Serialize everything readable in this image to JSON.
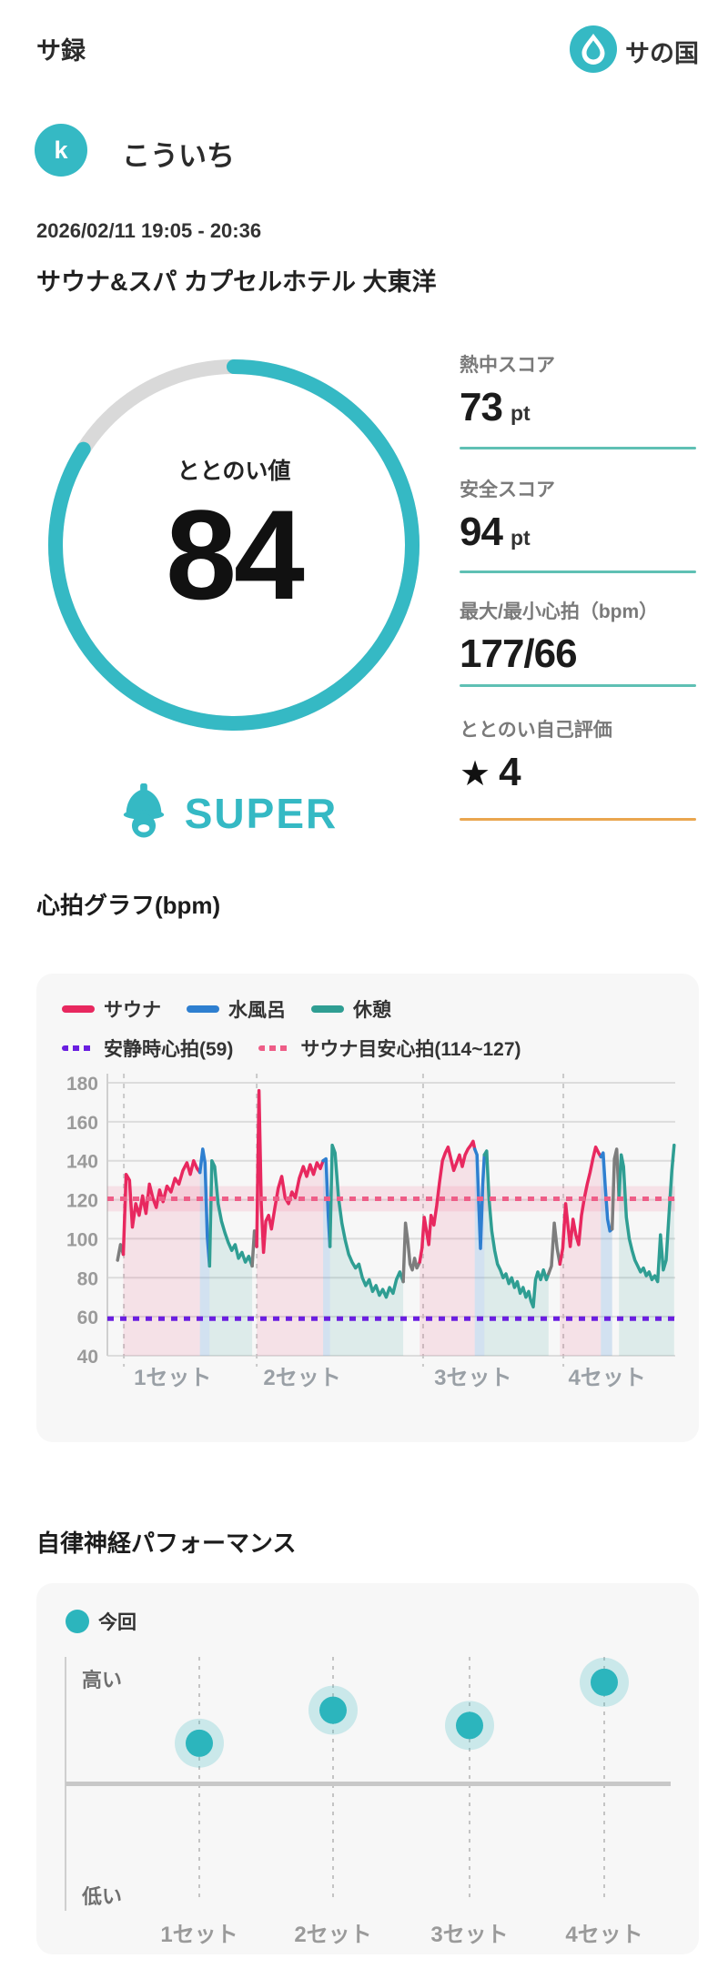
{
  "header": {
    "app_title": "サ録",
    "logo_text": "サの国"
  },
  "profile": {
    "avatar_initial": "k",
    "name": "こういち"
  },
  "session": {
    "datetime": "2026/02/11 19:05 - 20:36",
    "venue": "サウナ&スパ カプセルホテル 大東洋"
  },
  "gauge": {
    "label": "ととのい値",
    "value": "84",
    "percent": 84,
    "rating": "SUPER"
  },
  "stats": [
    {
      "label": "熱中スコア",
      "value": "73",
      "unit": "pt",
      "star": "",
      "underline": "#5fc0b4"
    },
    {
      "label": "安全スコア",
      "value": "94",
      "unit": "pt",
      "star": "",
      "underline": "#5fc0b4"
    },
    {
      "label": "最大/最小心拍（bpm）",
      "value": "177/66",
      "unit": "",
      "star": "",
      "underline": "#5fc0b4"
    },
    {
      "label": "ととのい自己評価",
      "value": "4",
      "unit": "",
      "star": "★",
      "underline": "#eaa64f"
    }
  ],
  "colors": {
    "accent_teal": "#35b9c4",
    "sauna_pink": "#e8285f",
    "water_blue": "#2e7fd0",
    "rest_teal": "#2f9e93",
    "transition_gray": "#7d7d7d",
    "resting_purple": "#6a1ee0",
    "guide_pink": "#ee5d87",
    "card_bg": "#f7f7f7",
    "grid_gray": "#dcdcdc",
    "rating_orange": "#eaa64f"
  },
  "chart_data": [
    {
      "type": "line",
      "title": "心拍グラフ(bpm)",
      "ylim": [
        40,
        180
      ],
      "yticks": [
        180,
        160,
        140,
        120,
        100,
        80,
        60,
        40
      ],
      "grid": true,
      "x_categories": [
        "1セット",
        "2セット",
        "3セット",
        "4セット"
      ],
      "set_marker_x": [
        2.9,
        26.3,
        55.6,
        80.3
      ],
      "set_label_x": [
        11.5,
        34.3,
        64.4,
        88.0
      ],
      "legend": [
        {
          "label": "サウナ",
          "color": "#e8285f"
        },
        {
          "label": "水風呂",
          "color": "#2e7fd0"
        },
        {
          "label": "休憩",
          "color": "#2f9e93"
        }
      ],
      "guides": [
        {
          "label": "安静時心拍(59)",
          "value": 59,
          "color": "#6a1ee0"
        },
        {
          "label": "サウナ目安心拍(114~127)",
          "value": 120.5,
          "band": [
            114,
            127
          ],
          "color": "#ee5d87"
        }
      ],
      "palette": {
        "sauna": "#e8285f",
        "water": "#2e7fd0",
        "rest": "#2f9e93",
        "transition": "#7d7d7d"
      },
      "fill_opacity": {
        "sauna": 0.1,
        "water": 0.18,
        "rest": 0.13,
        "transition": 0
      },
      "series_segments": [
        {
          "type": "transition",
          "points": [
            [
              1.8,
              89
            ],
            [
              2.3,
              97
            ],
            [
              2.8,
              92
            ]
          ]
        },
        {
          "type": "sauna",
          "points": [
            [
              2.8,
              92
            ],
            [
              3.3,
              133
            ],
            [
              3.9,
              130
            ],
            [
              4.4,
              106
            ],
            [
              5.0,
              118
            ],
            [
              5.6,
              112
            ],
            [
              6.2,
              122
            ],
            [
              6.8,
              113
            ],
            [
              7.4,
              128
            ],
            [
              8.0,
              121
            ],
            [
              8.6,
              116
            ],
            [
              9.2,
              125
            ],
            [
              9.8,
              119
            ],
            [
              10.5,
              127
            ],
            [
              11.2,
              124
            ],
            [
              11.9,
              131
            ],
            [
              12.6,
              128
            ],
            [
              13.3,
              135
            ],
            [
              14.0,
              139
            ],
            [
              14.6,
              133
            ],
            [
              15.2,
              140
            ],
            [
              15.8,
              136
            ],
            [
              16.3,
              134
            ]
          ]
        },
        {
          "type": "water",
          "points": [
            [
              16.3,
              134
            ],
            [
              16.8,
              146
            ],
            [
              17.2,
              139
            ],
            [
              17.6,
              101
            ],
            [
              18.0,
              86
            ]
          ]
        },
        {
          "type": "rest",
          "points": [
            [
              18.0,
              86
            ],
            [
              18.4,
              140
            ],
            [
              18.9,
              137
            ],
            [
              19.5,
              118
            ],
            [
              20.1,
              109
            ],
            [
              20.7,
              103
            ],
            [
              21.3,
              98
            ],
            [
              21.9,
              94
            ],
            [
              22.5,
              97
            ],
            [
              23.1,
              90
            ],
            [
              23.7,
              93
            ],
            [
              24.3,
              88
            ],
            [
              24.9,
              91
            ],
            [
              25.5,
              86
            ]
          ]
        },
        {
          "type": "transition",
          "points": [
            [
              25.5,
              86
            ],
            [
              25.9,
              104
            ],
            [
              26.3,
              96
            ]
          ]
        },
        {
          "type": "sauna",
          "points": [
            [
              26.3,
              96
            ],
            [
              26.7,
              176
            ],
            [
              27.1,
              118
            ],
            [
              27.5,
              93
            ],
            [
              27.9,
              109
            ],
            [
              28.4,
              112
            ],
            [
              28.9,
              105
            ],
            [
              29.5,
              116
            ],
            [
              30.1,
              126
            ],
            [
              30.7,
              132
            ],
            [
              31.3,
              121
            ],
            [
              31.9,
              118
            ],
            [
              32.5,
              124
            ],
            [
              33.1,
              121
            ],
            [
              33.8,
              131
            ],
            [
              34.5,
              137
            ],
            [
              35.1,
              132
            ],
            [
              35.7,
              138
            ],
            [
              36.3,
              133
            ],
            [
              36.9,
              139
            ],
            [
              37.5,
              136
            ],
            [
              38.0,
              140
            ]
          ]
        },
        {
          "type": "water",
          "points": [
            [
              38.0,
              140
            ],
            [
              38.5,
              141
            ],
            [
              38.9,
              112
            ],
            [
              39.2,
              96
            ]
          ]
        },
        {
          "type": "rest",
          "points": [
            [
              39.2,
              96
            ],
            [
              39.6,
              148
            ],
            [
              40.1,
              144
            ],
            [
              40.7,
              121
            ],
            [
              41.3,
              108
            ],
            [
              41.9,
              99
            ],
            [
              42.5,
              92
            ],
            [
              43.1,
              88
            ],
            [
              43.7,
              85
            ],
            [
              44.3,
              87
            ],
            [
              44.9,
              80
            ],
            [
              45.5,
              76
            ],
            [
              46.1,
              79
            ],
            [
              46.7,
              73
            ],
            [
              47.3,
              76
            ],
            [
              47.9,
              71
            ],
            [
              48.5,
              74
            ],
            [
              49.1,
              70
            ],
            [
              49.7,
              75
            ],
            [
              50.3,
              72
            ],
            [
              50.9,
              79
            ],
            [
              51.5,
              83
            ],
            [
              52.1,
              78
            ]
          ]
        },
        {
          "type": "transition",
          "points": [
            [
              52.1,
              78
            ],
            [
              52.5,
              108
            ],
            [
              52.9,
              99
            ],
            [
              53.3,
              87
            ],
            [
              53.7,
              84
            ],
            [
              54.1,
              90
            ],
            [
              54.5,
              85
            ],
            [
              55.0,
              88
            ]
          ]
        },
        {
          "type": "sauna",
          "points": [
            [
              55.0,
              88
            ],
            [
              55.4,
              95
            ],
            [
              55.8,
              111
            ],
            [
              56.2,
              104
            ],
            [
              56.6,
              97
            ],
            [
              57.0,
              112
            ],
            [
              57.5,
              107
            ],
            [
              58.0,
              117
            ],
            [
              58.5,
              129
            ],
            [
              59.0,
              140
            ],
            [
              59.5,
              144
            ],
            [
              60.0,
              147
            ],
            [
              60.5,
              141
            ],
            [
              61.0,
              135
            ],
            [
              61.5,
              139
            ],
            [
              62.0,
              143
            ],
            [
              62.5,
              137
            ],
            [
              63.0,
              143
            ],
            [
              63.5,
              146
            ],
            [
              64.0,
              148
            ],
            [
              64.4,
              150
            ],
            [
              64.7,
              146
            ]
          ]
        },
        {
          "type": "water",
          "points": [
            [
              64.7,
              146
            ],
            [
              65.1,
              143
            ],
            [
              65.4,
              118
            ],
            [
              65.7,
              95
            ],
            [
              66.1,
              128
            ],
            [
              66.4,
              143
            ]
          ]
        },
        {
          "type": "rest",
          "points": [
            [
              66.4,
              143
            ],
            [
              66.8,
              145
            ],
            [
              67.2,
              121
            ],
            [
              67.7,
              104
            ],
            [
              68.2,
              94
            ],
            [
              68.7,
              87
            ],
            [
              69.2,
              84
            ],
            [
              69.7,
              80
            ],
            [
              70.2,
              82
            ],
            [
              70.7,
              77
            ],
            [
              71.2,
              80
            ],
            [
              71.7,
              75
            ],
            [
              72.2,
              78
            ],
            [
              72.7,
              72
            ],
            [
              73.2,
              75
            ],
            [
              73.7,
              70
            ],
            [
              74.2,
              73
            ],
            [
              74.6,
              68
            ],
            [
              75.0,
              65
            ],
            [
              75.4,
              79
            ],
            [
              75.8,
              83
            ],
            [
              76.3,
              79
            ],
            [
              76.8,
              84
            ],
            [
              77.3,
              79
            ],
            [
              77.7,
              82
            ]
          ]
        },
        {
          "type": "transition",
          "points": [
            [
              77.7,
              82
            ],
            [
              78.2,
              86
            ],
            [
              78.7,
              108
            ],
            [
              79.2,
              95
            ],
            [
              79.7,
              87
            ]
          ]
        },
        {
          "type": "sauna",
          "points": [
            [
              79.7,
              87
            ],
            [
              80.2,
              95
            ],
            [
              80.7,
              118
            ],
            [
              81.1,
              107
            ],
            [
              81.5,
              96
            ],
            [
              82.0,
              110
            ],
            [
              82.5,
              102
            ],
            [
              83.0,
              97
            ],
            [
              83.5,
              112
            ],
            [
              84.0,
              121
            ],
            [
              84.5,
              128
            ],
            [
              85.0,
              134
            ],
            [
              85.5,
              141
            ],
            [
              86.0,
              147
            ],
            [
              86.5,
              144
            ],
            [
              86.9,
              142
            ]
          ]
        },
        {
          "type": "water",
          "points": [
            [
              86.9,
              142
            ],
            [
              87.3,
              144
            ],
            [
              87.7,
              126
            ],
            [
              88.1,
              110
            ],
            [
              88.5,
              104
            ],
            [
              88.9,
              105
            ]
          ]
        },
        {
          "type": "transition",
          "points": [
            [
              88.9,
              105
            ],
            [
              89.3,
              141
            ],
            [
              89.7,
              146
            ],
            [
              90.1,
              121
            ]
          ]
        },
        {
          "type": "rest",
          "points": [
            [
              90.1,
              121
            ],
            [
              90.5,
              143
            ],
            [
              90.9,
              137
            ],
            [
              91.4,
              111
            ],
            [
              91.9,
              100
            ],
            [
              92.4,
              94
            ],
            [
              92.9,
              89
            ],
            [
              93.4,
              86
            ],
            [
              93.9,
              83
            ],
            [
              94.4,
              85
            ],
            [
              94.9,
              81
            ],
            [
              95.4,
              83
            ],
            [
              95.9,
              79
            ],
            [
              96.4,
              81
            ],
            [
              96.9,
              78
            ],
            [
              97.4,
              102
            ],
            [
              97.9,
              84
            ],
            [
              98.4,
              89
            ],
            [
              98.9,
              112
            ],
            [
              99.4,
              135
            ],
            [
              99.8,
              148
            ]
          ]
        }
      ]
    },
    {
      "type": "scatter",
      "title": "自律神経パフォーマンス",
      "legend": [
        {
          "label": "今回",
          "color": "#2cb5bd"
        }
      ],
      "ylabels": {
        "high": "高い",
        "low": "低い"
      },
      "categories": [
        "1セット",
        "2セット",
        "3セット",
        "4セット"
      ],
      "values": [
        66,
        79,
        73,
        90
      ],
      "baseline": 50,
      "ylim": [
        0,
        100
      ]
    }
  ]
}
